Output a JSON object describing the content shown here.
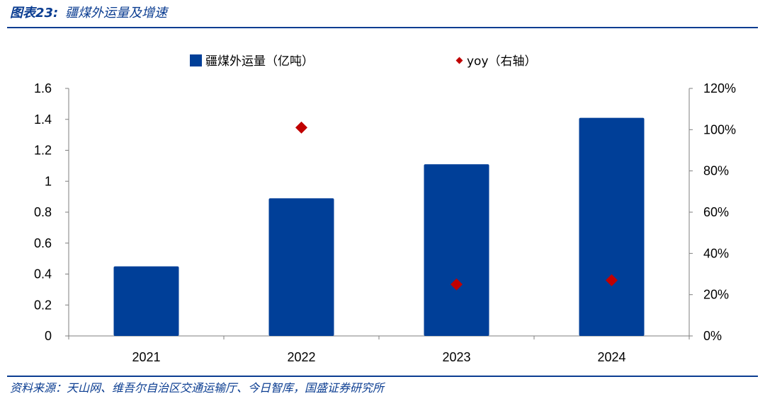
{
  "header": {
    "figure_number": "图表23:",
    "title": "疆煤外运量及增速"
  },
  "source": {
    "text": "资料来源：天山网、维吾尔自治区交通运输厅、今日智库，国盛证券研究所"
  },
  "colors": {
    "accent": "#0b3d91",
    "bar": "#003f98",
    "marker": "#c00000"
  },
  "chart_data": {
    "type": "bar",
    "categories": [
      "2021",
      "2022",
      "2023",
      "2024"
    ],
    "series": [
      {
        "name": "疆煤外运量（亿吨）",
        "type": "bar",
        "axis": "left",
        "values": [
          0.45,
          0.89,
          1.11,
          1.41
        ]
      },
      {
        "name": "yoy（右轴）",
        "type": "scatter",
        "axis": "right",
        "values": [
          null,
          1.01,
          0.25,
          0.27
        ]
      }
    ],
    "y_left": {
      "lim": [
        0,
        1.6
      ],
      "ticks": [
        "0",
        "0.2",
        "0.4",
        "0.6",
        "0.8",
        "1",
        "1.2",
        "1.4",
        "1.6"
      ]
    },
    "y_right": {
      "lim": [
        0,
        1.2
      ],
      "ticks": [
        "0%",
        "20%",
        "40%",
        "60%",
        "80%",
        "100%",
        "120%"
      ]
    },
    "grid": false,
    "legend_position": "top"
  }
}
